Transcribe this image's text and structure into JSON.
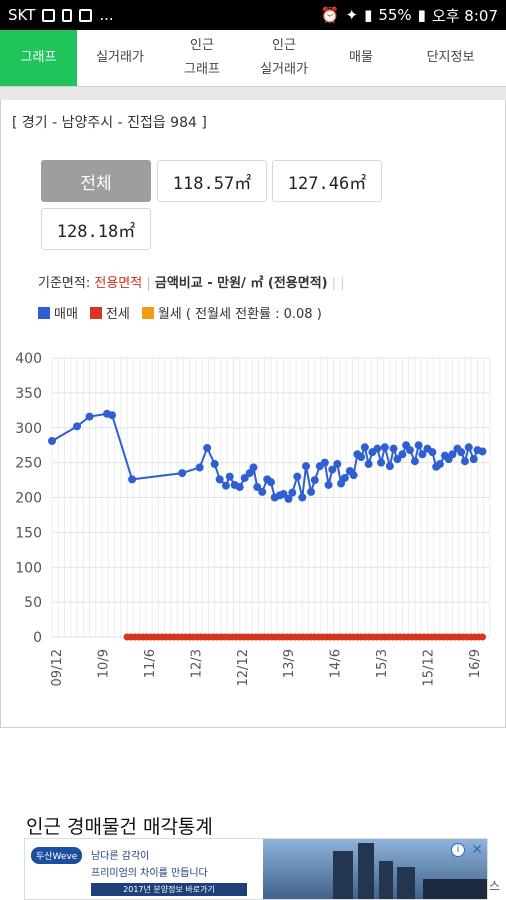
{
  "status_bar": {
    "carrier": "SKT",
    "dots": "...",
    "battery": "55%",
    "time": "오후 8:07"
  },
  "tabs": [
    {
      "label": "그래프",
      "active": true
    },
    {
      "label": "실거래가"
    },
    {
      "label": "인근\n그래프"
    },
    {
      "label": "인근\n실거래가"
    },
    {
      "label": "매물"
    },
    {
      "label": "단지정보"
    }
  ],
  "location": "[ 경기 - 남양주시 - 진접읍 984 ]",
  "area_buttons": [
    "전체",
    "118.57㎡",
    "127.46㎡",
    "128.18㎡"
  ],
  "basis": {
    "prefix": "기준면적: ",
    "value": "전용면적",
    "compare": "금액비교 - 만원/ ㎡ (전용면적)",
    "sep": " |  |"
  },
  "legend": [
    {
      "label": "매매",
      "color": "#2f5fd0"
    },
    {
      "label": "전세",
      "color": "#d9341c"
    },
    {
      "label": "월세 ( 전월세 전환률 : 0.08 )",
      "color": "#f39c12"
    }
  ],
  "chart_data": {
    "type": "scatter",
    "ylim": [
      0,
      400
    ],
    "yticks": [
      0,
      50,
      100,
      150,
      200,
      250,
      300,
      350,
      400
    ],
    "xticks": [
      "09/12",
      "10/9",
      "11/6",
      "12/3",
      "12/12",
      "13/9",
      "14/6",
      "15/3",
      "15/12",
      "16/9"
    ],
    "xlabel": "",
    "ylabel": "",
    "series": [
      {
        "name": "매매",
        "color": "#2f5fd0",
        "line": true,
        "x": [
          0,
          1.0,
          1.5,
          2.2,
          2.4,
          3.2,
          5.2,
          5.9,
          6.2,
          6.5,
          6.7,
          6.95,
          7.1,
          7.3,
          7.5,
          7.7,
          7.9,
          8.05,
          8.2,
          8.4,
          8.6,
          8.75,
          8.9,
          9.1,
          9.25,
          9.45,
          9.6,
          9.8,
          10.0,
          10.15,
          10.35,
          10.5,
          10.7,
          10.9,
          11.05,
          11.2,
          11.4,
          11.55,
          11.7,
          11.9,
          12.05,
          12.2,
          12.35,
          12.5,
          12.65,
          12.8,
          13.0,
          13.15,
          13.3,
          13.5,
          13.65,
          13.8,
          14.0,
          14.15,
          14.3,
          14.5,
          14.65,
          14.8,
          15.0,
          15.2,
          15.35,
          15.5,
          15.7,
          15.85,
          16.0,
          16.2,
          16.35,
          16.5,
          16.65,
          16.85,
          17.0,
          17.2
        ],
        "values": [
          281,
          302,
          316,
          320,
          318,
          226,
          235,
          243,
          271,
          248,
          226,
          217,
          230,
          218,
          215,
          228,
          235,
          243,
          215,
          208,
          226,
          222,
          200,
          203,
          205,
          198,
          207,
          230,
          200,
          245,
          208,
          225,
          245,
          250,
          218,
          240,
          248,
          220,
          228,
          238,
          232,
          262,
          258,
          272,
          248,
          265,
          270,
          250,
          272,
          245,
          270,
          255,
          262,
          275,
          268,
          252,
          275,
          262,
          270,
          265,
          244,
          248,
          260,
          255,
          262,
          270,
          265,
          252,
          272,
          255,
          268,
          266
        ]
      },
      {
        "name": "전세",
        "color": "#d9341c",
        "line": false,
        "x_start": 3.0,
        "x_end": 17.2,
        "count": 92,
        "value": 0
      }
    ]
  },
  "ad": {
    "title": "인근 경매물건 매각통계",
    "brand": "두산Weve",
    "line1": "남다른 감각이",
    "line2": "프리미엄의 차이를 만듭니다",
    "bar": "2017년 분양정보 바로가기",
    "info": "i",
    "close": "✕",
    "corner": "스"
  }
}
